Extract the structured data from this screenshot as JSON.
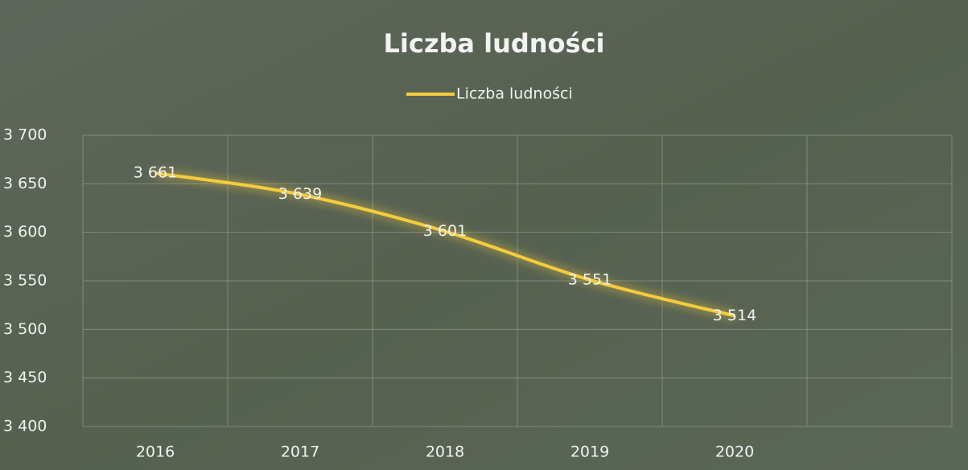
{
  "chart_data": {
    "type": "line",
    "title": "Liczba ludności",
    "categories": [
      "2016",
      "2017",
      "2018",
      "2019",
      "2020",
      null
    ],
    "series": [
      {
        "name": "Liczba ludności",
        "color": "#f4cc3c",
        "values": [
          3661,
          3639,
          3601,
          3551,
          3514,
          null
        ],
        "value_labels": [
          "3 661",
          "3 639",
          "3 601",
          "3 551",
          "3 514",
          null
        ]
      }
    ],
    "ylim": [
      3400,
      3700
    ],
    "yticks": [
      {
        "value": 3400,
        "label": "3 400"
      },
      {
        "value": 3450,
        "label": "3 450"
      },
      {
        "value": 3500,
        "label": "3 500"
      },
      {
        "value": 3550,
        "label": "3 550"
      },
      {
        "value": 3600,
        "label": "3 600"
      },
      {
        "value": 3650,
        "label": "3 650"
      },
      {
        "value": 3700,
        "label": "3 700"
      }
    ],
    "grid": true,
    "legend": "top"
  }
}
